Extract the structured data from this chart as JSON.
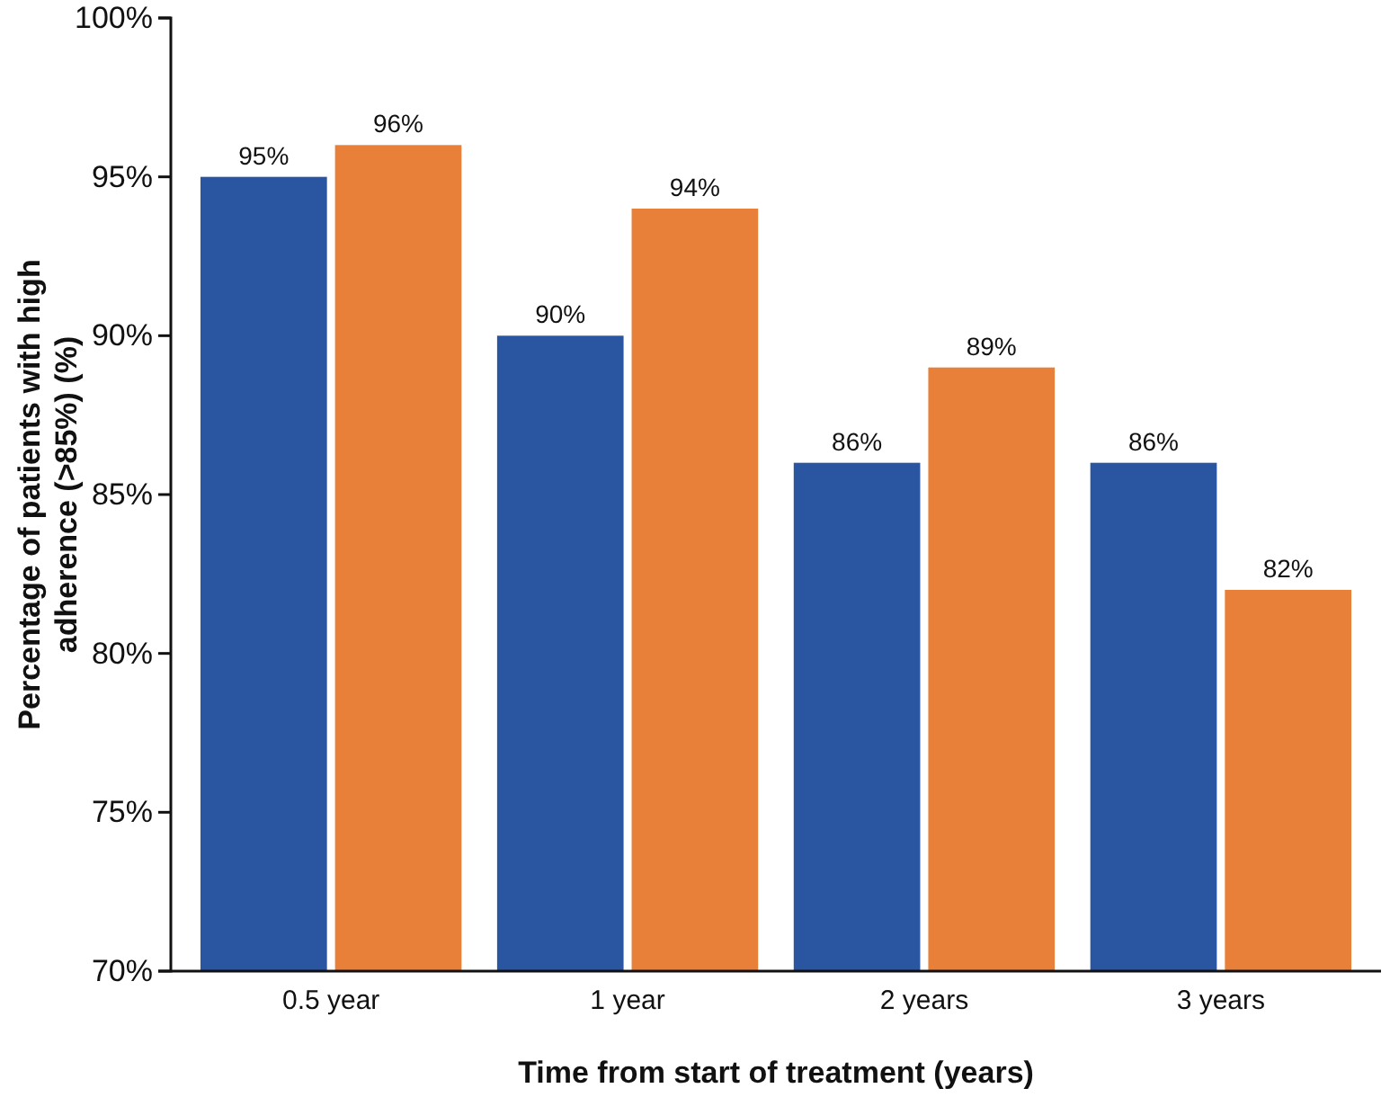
{
  "chart_data": {
    "type": "bar",
    "xlabel": "Time from start of treatment (years)",
    "ylabel": "Percentage of patients with high adherence (>85%) (%)",
    "categories": [
      "0.5 year",
      "1 year",
      "2 years",
      "3 years"
    ],
    "series": [
      {
        "color": "#2a55a0",
        "values": [
          95,
          90,
          86,
          86
        ],
        "value_labels": [
          "95%",
          "90%",
          "86%",
          "86%"
        ]
      },
      {
        "color": "#e8803a",
        "values": [
          96,
          94,
          89,
          82
        ],
        "value_labels": [
          "96%",
          "94%",
          "89%",
          "82%"
        ]
      }
    ],
    "ylim": [
      70,
      100
    ],
    "yticks": [
      {
        "value": 70,
        "label": "70%"
      },
      {
        "value": 75,
        "label": "75%"
      },
      {
        "value": 80,
        "label": "80%"
      },
      {
        "value": 85,
        "label": "85%"
      },
      {
        "value": 90,
        "label": "90%"
      },
      {
        "value": 95,
        "label": "95%"
      },
      {
        "value": 100,
        "label": "100%"
      }
    ],
    "grid": false
  }
}
